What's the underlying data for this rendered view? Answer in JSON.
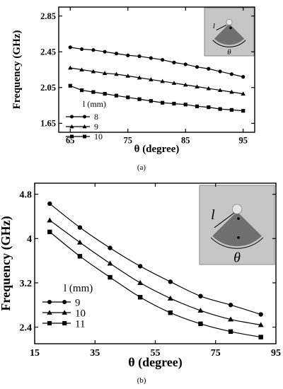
{
  "chart_data": [
    {
      "type": "line",
      "panel_label": "(a)",
      "xlabel": "θ (degree)",
      "ylabel": "Frequency (GHz)",
      "xlim": [
        63,
        97
      ],
      "ylim": [
        1.55,
        2.95
      ],
      "xticks": [
        65,
        75,
        85,
        95
      ],
      "yticks": [
        1.65,
        2.05,
        2.45,
        2.85
      ],
      "legend_title": "l (mm)",
      "legend_position": "bottom-left",
      "inset_labels": [
        "l",
        "θ"
      ],
      "series": [
        {
          "name": "8",
          "marker": "circle",
          "x": [
            65,
            67,
            69,
            71,
            73,
            75,
            77,
            79,
            81,
            83,
            85,
            87,
            89,
            91,
            93,
            95
          ],
          "values": [
            2.5,
            2.48,
            2.47,
            2.45,
            2.43,
            2.41,
            2.4,
            2.38,
            2.36,
            2.33,
            2.31,
            2.28,
            2.26,
            2.23,
            2.2,
            2.17
          ]
        },
        {
          "name": "9",
          "marker": "triangle",
          "x": [
            65,
            67,
            69,
            71,
            73,
            75,
            77,
            79,
            81,
            83,
            85,
            87,
            89,
            91,
            93,
            95
          ],
          "values": [
            2.27,
            2.25,
            2.23,
            2.21,
            2.2,
            2.18,
            2.16,
            2.14,
            2.12,
            2.1,
            2.08,
            2.06,
            2.04,
            2.02,
            2.0,
            1.98
          ]
        },
        {
          "name": "10",
          "marker": "square",
          "x": [
            65,
            67,
            69,
            71,
            73,
            75,
            77,
            79,
            81,
            83,
            85,
            87,
            89,
            91,
            93,
            95
          ],
          "values": [
            2.07,
            2.02,
            2.0,
            1.98,
            1.96,
            1.94,
            1.92,
            1.9,
            1.88,
            1.87,
            1.86,
            1.84,
            1.83,
            1.81,
            1.8,
            1.79
          ]
        }
      ]
    },
    {
      "type": "line",
      "panel_label": "(b)",
      "xlabel": "θ (degree)",
      "ylabel": "Frequency (GHz)",
      "xlim": [
        15,
        95
      ],
      "ylim": [
        2.1,
        5.0
      ],
      "xticks": [
        15,
        35,
        55,
        75,
        95
      ],
      "yticks": [
        2.4,
        3.2,
        4,
        4.8
      ],
      "legend_title": "l (mm)",
      "legend_position": "bottom-left",
      "inset_labels": [
        "l",
        "θ"
      ],
      "series": [
        {
          "name": "9",
          "marker": "circle",
          "x": [
            20,
            30,
            40,
            50,
            60,
            70,
            80,
            90
          ],
          "values": [
            4.63,
            4.2,
            3.83,
            3.5,
            3.22,
            2.96,
            2.8,
            2.63
          ]
        },
        {
          "name": "10",
          "marker": "triangle",
          "x": [
            20,
            30,
            40,
            50,
            60,
            70,
            80,
            90
          ],
          "values": [
            4.33,
            3.93,
            3.55,
            3.2,
            2.92,
            2.7,
            2.54,
            2.44
          ]
        },
        {
          "name": "11",
          "marker": "square",
          "x": [
            20,
            30,
            40,
            50,
            60,
            70,
            80,
            90
          ],
          "values": [
            4.12,
            3.68,
            3.3,
            2.94,
            2.66,
            2.46,
            2.32,
            2.22
          ]
        }
      ]
    }
  ]
}
